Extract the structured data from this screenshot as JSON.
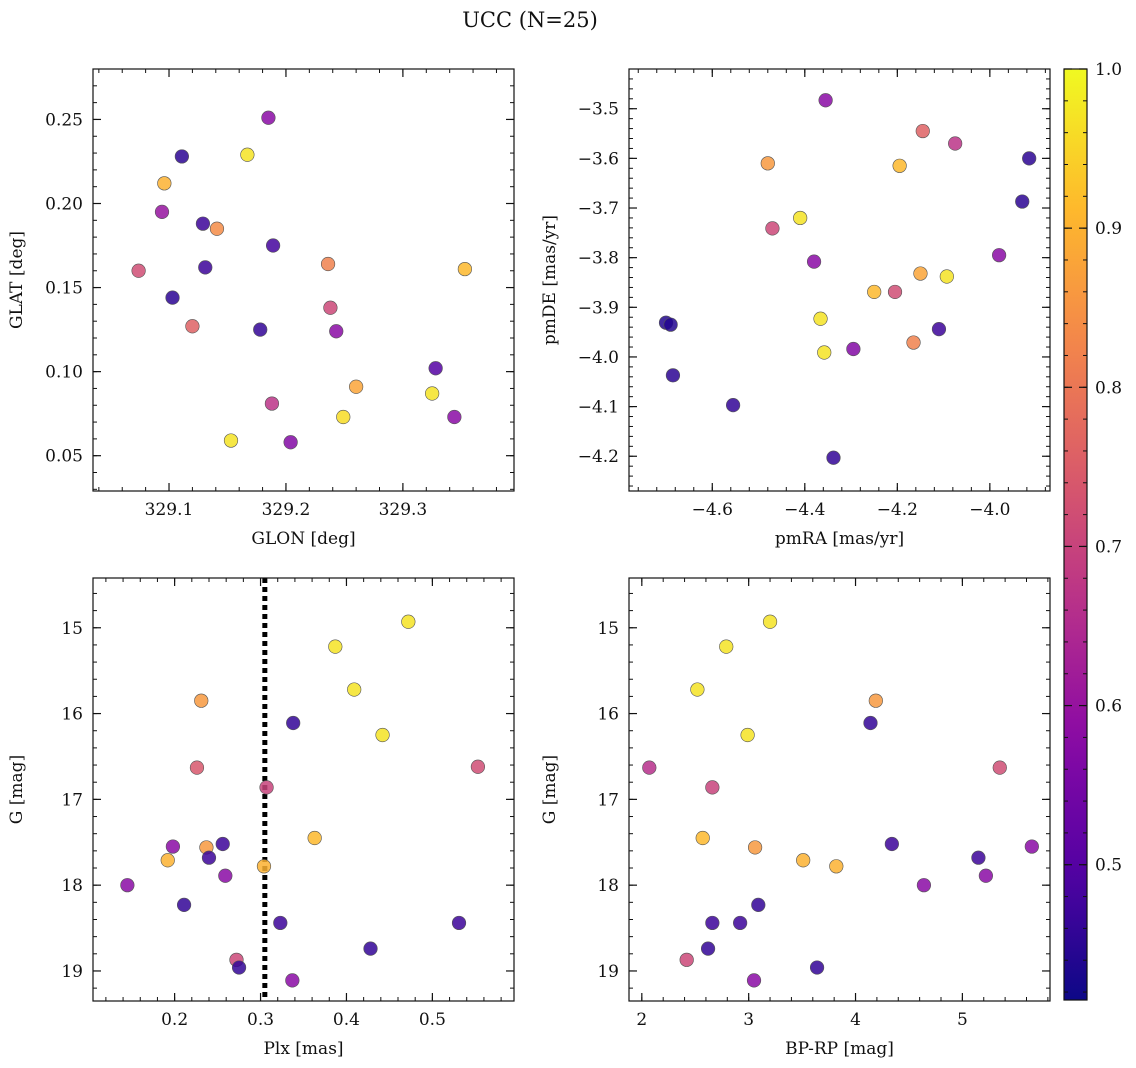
{
  "figure": {
    "title": "UCC (N=25)",
    "colorbar": {
      "min": 0.415,
      "max": 1.0,
      "ticks": [
        0.5,
        0.6,
        0.7,
        0.8,
        0.9,
        1.0
      ],
      "tick_labels": [
        "0.5",
        "0.6",
        "0.7",
        "0.8",
        "0.9",
        "1.0"
      ],
      "colormap": "plasma"
    }
  },
  "chart_data": [
    {
      "type": "scatter",
      "xlabel": "GLON [deg]",
      "ylabel": "GLAT [deg]",
      "xlim": [
        329.035,
        329.395
      ],
      "ylim": [
        0.029,
        0.28
      ],
      "y_inverted": false,
      "xticks": [
        329.1,
        329.2,
        329.3
      ],
      "xtick_labels": [
        "329.1",
        "329.2",
        "329.3"
      ],
      "yticks": [
        0.05,
        0.1,
        0.15,
        0.2,
        0.25
      ],
      "ytick_labels": [
        "0.05",
        "0.10",
        "0.15",
        "0.20",
        "0.25"
      ],
      "points": [
        {
          "x": 329.185,
          "y": 0.251,
          "c": 0.58
        },
        {
          "x": 329.111,
          "y": 0.228,
          "c": 0.45
        },
        {
          "x": 329.167,
          "y": 0.229,
          "c": 0.97
        },
        {
          "x": 329.096,
          "y": 0.212,
          "c": 0.9
        },
        {
          "x": 329.094,
          "y": 0.195,
          "c": 0.6
        },
        {
          "x": 329.129,
          "y": 0.188,
          "c": 0.47
        },
        {
          "x": 329.141,
          "y": 0.185,
          "c": 0.84
        },
        {
          "x": 329.189,
          "y": 0.175,
          "c": 0.48
        },
        {
          "x": 329.236,
          "y": 0.164,
          "c": 0.82
        },
        {
          "x": 329.131,
          "y": 0.162,
          "c": 0.47
        },
        {
          "x": 329.074,
          "y": 0.16,
          "c": 0.72
        },
        {
          "x": 329.353,
          "y": 0.161,
          "c": 0.91
        },
        {
          "x": 329.103,
          "y": 0.144,
          "c": 0.45
        },
        {
          "x": 329.238,
          "y": 0.138,
          "c": 0.71
        },
        {
          "x": 329.12,
          "y": 0.127,
          "c": 0.76
        },
        {
          "x": 329.178,
          "y": 0.125,
          "c": 0.46
        },
        {
          "x": 329.243,
          "y": 0.124,
          "c": 0.58
        },
        {
          "x": 329.328,
          "y": 0.102,
          "c": 0.5
        },
        {
          "x": 329.26,
          "y": 0.091,
          "c": 0.88
        },
        {
          "x": 329.325,
          "y": 0.087,
          "c": 0.97
        },
        {
          "x": 329.188,
          "y": 0.081,
          "c": 0.67
        },
        {
          "x": 329.249,
          "y": 0.073,
          "c": 0.96
        },
        {
          "x": 329.344,
          "y": 0.073,
          "c": 0.58
        },
        {
          "x": 329.153,
          "y": 0.059,
          "c": 0.97
        },
        {
          "x": 329.204,
          "y": 0.058,
          "c": 0.57
        }
      ]
    },
    {
      "type": "scatter",
      "xlabel": "pmRA [mas/yr]",
      "ylabel": "pmDE [mas/yr]",
      "xlim": [
        -4.78,
        -3.87
      ],
      "ylim": [
        -4.27,
        -3.42
      ],
      "y_inverted": false,
      "xticks": [
        -4.6,
        -4.4,
        -4.2,
        -4.0
      ],
      "xtick_labels": [
        "−4.6",
        "−4.4",
        "−4.2",
        "−4.0"
      ],
      "yticks": [
        -4.2,
        -4.1,
        -4.0,
        -3.9,
        -3.8,
        -3.7,
        -3.6,
        -3.5
      ],
      "ytick_labels": [
        "−4.2",
        "−4.1",
        "−4.0",
        "−3.9",
        "−3.8",
        "−3.7",
        "−3.6",
        "−3.5"
      ],
      "points": [
        {
          "x": -4.355,
          "y": -3.483,
          "c": 0.58
        },
        {
          "x": -4.145,
          "y": -3.545,
          "c": 0.76
        },
        {
          "x": -4.075,
          "y": -3.57,
          "c": 0.67
        },
        {
          "x": -3.915,
          "y": -3.6,
          "c": 0.45
        },
        {
          "x": -4.48,
          "y": -3.61,
          "c": 0.86
        },
        {
          "x": -4.195,
          "y": -3.615,
          "c": 0.91
        },
        {
          "x": -3.93,
          "y": -3.687,
          "c": 0.45
        },
        {
          "x": -4.41,
          "y": -3.72,
          "c": 0.97
        },
        {
          "x": -4.47,
          "y": -3.741,
          "c": 0.71
        },
        {
          "x": -3.98,
          "y": -3.795,
          "c": 0.58
        },
        {
          "x": -4.38,
          "y": -3.808,
          "c": 0.58
        },
        {
          "x": -4.15,
          "y": -3.832,
          "c": 0.88
        },
        {
          "x": -4.093,
          "y": -3.838,
          "c": 0.97
        },
        {
          "x": -4.25,
          "y": -3.869,
          "c": 0.91
        },
        {
          "x": -4.205,
          "y": -3.869,
          "c": 0.72
        },
        {
          "x": -4.366,
          "y": -3.923,
          "c": 0.97
        },
        {
          "x": -4.7,
          "y": -3.931,
          "c": 0.44
        },
        {
          "x": -4.69,
          "y": -3.935,
          "c": 0.44
        },
        {
          "x": -4.11,
          "y": -3.944,
          "c": 0.47
        },
        {
          "x": -4.165,
          "y": -3.971,
          "c": 0.82
        },
        {
          "x": -4.295,
          "y": -3.984,
          "c": 0.57
        },
        {
          "x": -4.358,
          "y": -3.991,
          "c": 0.97
        },
        {
          "x": -4.685,
          "y": -4.037,
          "c": 0.45
        },
        {
          "x": -4.555,
          "y": -4.097,
          "c": 0.46
        },
        {
          "x": -4.338,
          "y": -4.203,
          "c": 0.46
        }
      ]
    },
    {
      "type": "scatter",
      "xlabel": "Plx [mas]",
      "ylabel": "G [mag]",
      "xlim": [
        0.105,
        0.595
      ],
      "ylim": [
        14.42,
        19.35
      ],
      "y_inverted": true,
      "xticks": [
        0.2,
        0.3,
        0.4,
        0.5
      ],
      "xtick_labels": [
        "0.2",
        "0.3",
        "0.4",
        "0.5"
      ],
      "yticks": [
        15,
        16,
        17,
        18,
        19
      ],
      "ytick_labels": [
        "15",
        "16",
        "17",
        "18",
        "19"
      ],
      "vline": {
        "x": 0.305,
        "style": "dotted"
      },
      "points": [
        {
          "x": 0.472,
          "y": 14.93,
          "c": 0.97
        },
        {
          "x": 0.387,
          "y": 15.22,
          "c": 0.97
        },
        {
          "x": 0.409,
          "y": 15.72,
          "c": 0.97
        },
        {
          "x": 0.231,
          "y": 15.85,
          "c": 0.86
        },
        {
          "x": 0.338,
          "y": 16.11,
          "c": 0.46
        },
        {
          "x": 0.442,
          "y": 16.25,
          "c": 0.97
        },
        {
          "x": 0.226,
          "y": 16.63,
          "c": 0.74
        },
        {
          "x": 0.553,
          "y": 16.62,
          "c": 0.72
        },
        {
          "x": 0.307,
          "y": 16.86,
          "c": 0.7
        },
        {
          "x": 0.363,
          "y": 17.45,
          "c": 0.91
        },
        {
          "x": 0.256,
          "y": 17.52,
          "c": 0.47
        },
        {
          "x": 0.198,
          "y": 17.55,
          "c": 0.58
        },
        {
          "x": 0.237,
          "y": 17.56,
          "c": 0.86
        },
        {
          "x": 0.24,
          "y": 17.68,
          "c": 0.47
        },
        {
          "x": 0.192,
          "y": 17.71,
          "c": 0.9
        },
        {
          "x": 0.304,
          "y": 17.78,
          "c": 0.9
        },
        {
          "x": 0.259,
          "y": 17.89,
          "c": 0.58
        },
        {
          "x": 0.145,
          "y": 18.0,
          "c": 0.58
        },
        {
          "x": 0.211,
          "y": 18.23,
          "c": 0.46
        },
        {
          "x": 0.323,
          "y": 18.44,
          "c": 0.47
        },
        {
          "x": 0.531,
          "y": 18.44,
          "c": 0.47
        },
        {
          "x": 0.428,
          "y": 18.74,
          "c": 0.46
        },
        {
          "x": 0.272,
          "y": 18.87,
          "c": 0.71
        },
        {
          "x": 0.275,
          "y": 18.96,
          "c": 0.46
        },
        {
          "x": 0.337,
          "y": 19.11,
          "c": 0.58
        }
      ]
    },
    {
      "type": "scatter",
      "xlabel": "BP-RP [mag]",
      "ylabel": "G [mag]",
      "xlim": [
        1.88,
        5.82
      ],
      "ylim": [
        14.42,
        19.35
      ],
      "y_inverted": true,
      "xticks": [
        2,
        3,
        4,
        5
      ],
      "xtick_labels": [
        "2",
        "3",
        "4",
        "5"
      ],
      "yticks": [
        15,
        16,
        17,
        18,
        19
      ],
      "ytick_labels": [
        "15",
        "16",
        "17",
        "18",
        "19"
      ],
      "points": [
        {
          "x": 3.2,
          "y": 14.93,
          "c": 0.97
        },
        {
          "x": 2.79,
          "y": 15.22,
          "c": 0.97
        },
        {
          "x": 2.52,
          "y": 15.72,
          "c": 0.97
        },
        {
          "x": 4.19,
          "y": 15.85,
          "c": 0.86
        },
        {
          "x": 4.14,
          "y": 16.11,
          "c": 0.46
        },
        {
          "x": 2.99,
          "y": 16.25,
          "c": 0.97
        },
        {
          "x": 2.07,
          "y": 16.63,
          "c": 0.66
        },
        {
          "x": 5.35,
          "y": 16.63,
          "c": 0.72
        },
        {
          "x": 2.66,
          "y": 16.86,
          "c": 0.7
        },
        {
          "x": 2.57,
          "y": 17.45,
          "c": 0.91
        },
        {
          "x": 4.34,
          "y": 17.52,
          "c": 0.47
        },
        {
          "x": 5.65,
          "y": 17.55,
          "c": 0.58
        },
        {
          "x": 3.06,
          "y": 17.56,
          "c": 0.86
        },
        {
          "x": 5.15,
          "y": 17.68,
          "c": 0.47
        },
        {
          "x": 3.51,
          "y": 17.71,
          "c": 0.9
        },
        {
          "x": 3.82,
          "y": 17.78,
          "c": 0.9
        },
        {
          "x": 5.22,
          "y": 17.89,
          "c": 0.58
        },
        {
          "x": 4.64,
          "y": 18.0,
          "c": 0.58
        },
        {
          "x": 3.09,
          "y": 18.23,
          "c": 0.46
        },
        {
          "x": 2.66,
          "y": 18.44,
          "c": 0.47
        },
        {
          "x": 2.92,
          "y": 18.44,
          "c": 0.47
        },
        {
          "x": 2.62,
          "y": 18.74,
          "c": 0.46
        },
        {
          "x": 2.42,
          "y": 18.87,
          "c": 0.71
        },
        {
          "x": 3.64,
          "y": 18.96,
          "c": 0.46
        },
        {
          "x": 3.05,
          "y": 19.11,
          "c": 0.58
        }
      ]
    }
  ]
}
